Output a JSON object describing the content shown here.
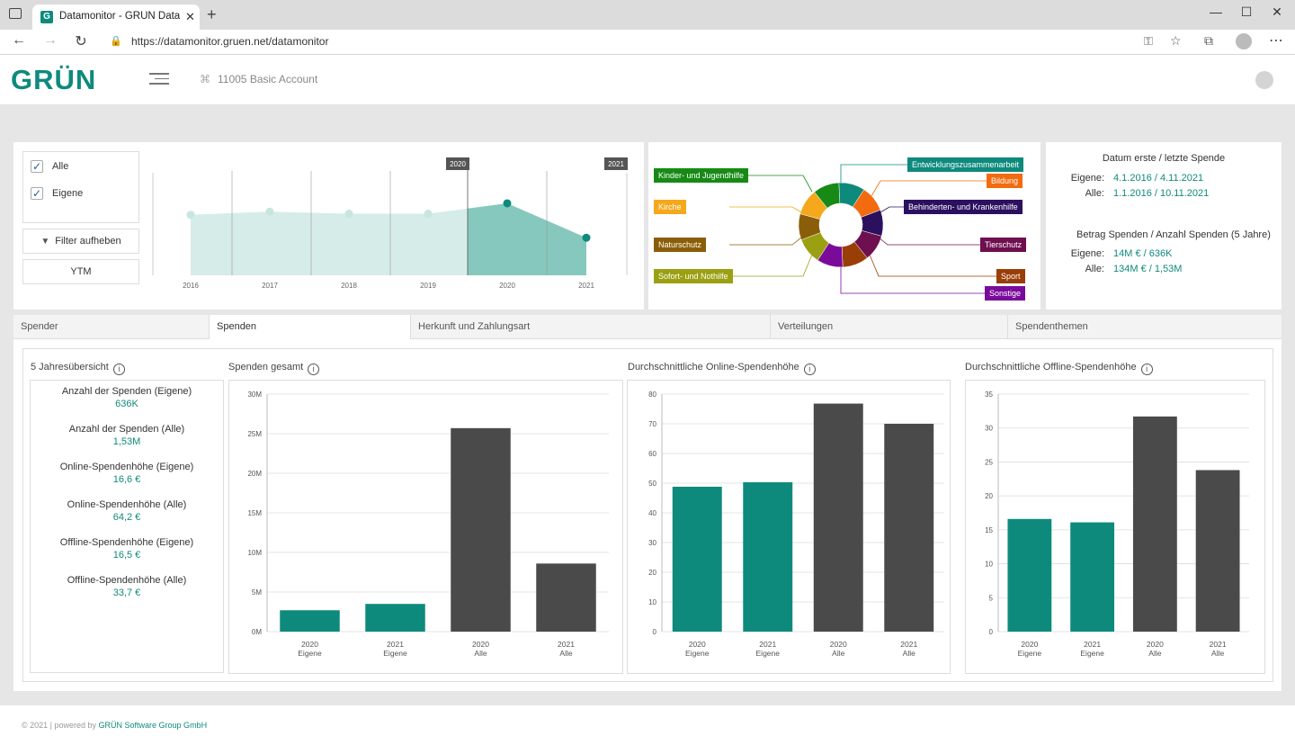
{
  "browser": {
    "tab_title": "Datamonitor - GRÜN Data Monit",
    "url": "https://datamonitor.gruen.net/datamonitor"
  },
  "app": {
    "logo": "GRÜN",
    "account": "11005 Basic Account"
  },
  "filters": {
    "options": [
      {
        "label": "Alle",
        "checked": true
      },
      {
        "label": "Eigene",
        "checked": true
      }
    ],
    "clear_button": "Filter aufheben",
    "ytm_button": "YTM"
  },
  "timeline": {
    "years": [
      "2016",
      "2017",
      "2018",
      "2019",
      "2020",
      "2021"
    ],
    "values": [
      0.58,
      0.61,
      0.59,
      0.59,
      0.69,
      0.36
    ],
    "selected_start": "2020",
    "selected_end": "2021",
    "colors": {
      "light": "#d6ece8",
      "dark": "#86c8bd",
      "dot_light": "#c7e6e0",
      "dot_dark": "#0e8a7c"
    }
  },
  "donut": {
    "segments": [
      {
        "label": "Entwicklungszusammenarbeit",
        "color": "#0e8a7c"
      },
      {
        "label": "Bildung",
        "color": "#f26b0f"
      },
      {
        "label": "Behinderten- und Krankenhilfe",
        "color": "#2b1060"
      },
      {
        "label": "Tierschutz",
        "color": "#6e0f4f"
      },
      {
        "label": "Sport",
        "color": "#9a3e08"
      },
      {
        "label": "Sonstige",
        "color": "#7a0b9a"
      },
      {
        "label": "Sofort- und Nothilfe",
        "color": "#9aa012"
      },
      {
        "label": "Naturschutz",
        "color": "#8a5e08"
      },
      {
        "label": "Kirche",
        "color": "#f5a81c"
      },
      {
        "label": "Kinder- und Jugendhilfe",
        "color": "#178a15"
      }
    ]
  },
  "summary": {
    "date_title": "Datum erste / letzte Spende",
    "date_rows": [
      {
        "label": "Eigene:",
        "value": "4.1.2016 / 4.11.2021"
      },
      {
        "label": "Alle:",
        "value": "1.1.2016 / 10.11.2021"
      }
    ],
    "amount_title": "Betrag Spenden / Anzahl Spenden (5 Jahre)",
    "amount_rows": [
      {
        "label": "Eigene:",
        "value": "14M € / 636K"
      },
      {
        "label": "Alle:",
        "value": "134M € / 1,53M"
      }
    ]
  },
  "tabs": [
    "Spender",
    "Spenden",
    "Herkunft und Zahlungsart",
    "Verteilungen",
    "Spendenthemen"
  ],
  "active_tab": "Spenden",
  "overview": {
    "title": "5 Jahresübersicht",
    "stats": [
      {
        "label": "Anzahl der Spenden (Eigene)",
        "value": "636K"
      },
      {
        "label": "Anzahl der Spenden (Alle)",
        "value": "1,53M"
      },
      {
        "label": "Online-Spendenhöhe (Eigene)",
        "value": "16,6 €"
      },
      {
        "label": "Online-Spendenhöhe (Alle)",
        "value": "64,2 €"
      },
      {
        "label": "Offline-Spendenhöhe (Eigene)",
        "value": "16,5 €"
      },
      {
        "label": "Offline-Spendenhöhe (Alle)",
        "value": "33,7 €"
      }
    ]
  },
  "chart_data": [
    {
      "type": "bar",
      "title": "Spenden gesamt",
      "categories": [
        [
          "2020",
          "Eigene"
        ],
        [
          "2021",
          "Eigene"
        ],
        [
          "2020",
          "Alle"
        ],
        [
          "2021",
          "Alle"
        ]
      ],
      "values": [
        2700000,
        3500000,
        25700000,
        8600000
      ],
      "colors": [
        "#0e8a7c",
        "#0e8a7c",
        "#4a4a4a",
        "#4a4a4a"
      ],
      "yticks": [
        "0M",
        "5M",
        "10M",
        "15M",
        "20M",
        "25M",
        "30M"
      ],
      "ylim": [
        0,
        30000000
      ]
    },
    {
      "type": "bar",
      "title": "Durchschnittliche Online-Spendenhöhe",
      "categories": [
        [
          "2020",
          "Eigene"
        ],
        [
          "2021",
          "Eigene"
        ],
        [
          "2020",
          "Alle"
        ],
        [
          "2021",
          "Alle"
        ]
      ],
      "values": [
        48.8,
        50.3,
        76.8,
        70.0
      ],
      "colors": [
        "#0e8a7c",
        "#0e8a7c",
        "#4a4a4a",
        "#4a4a4a"
      ],
      "yticks": [
        "0",
        "10",
        "20",
        "30",
        "40",
        "50",
        "60",
        "70",
        "80"
      ],
      "ylim": [
        0,
        80
      ]
    },
    {
      "type": "bar",
      "title": "Durchschnittliche Offline-Spendenhöhe",
      "categories": [
        [
          "2020",
          "Eigene"
        ],
        [
          "2021",
          "Eigene"
        ],
        [
          "2020",
          "Alle"
        ],
        [
          "2021",
          "Alle"
        ]
      ],
      "values": [
        16.6,
        16.1,
        31.7,
        23.8
      ],
      "colors": [
        "#0e8a7c",
        "#0e8a7c",
        "#4a4a4a",
        "#4a4a4a"
      ],
      "yticks": [
        "0",
        "5",
        "10",
        "15",
        "20",
        "25",
        "30",
        "35"
      ],
      "ylim": [
        0,
        35
      ]
    }
  ],
  "footer": {
    "prefix": "© 2021 | powered by ",
    "company": "GRÜN Software Group GmbH"
  }
}
